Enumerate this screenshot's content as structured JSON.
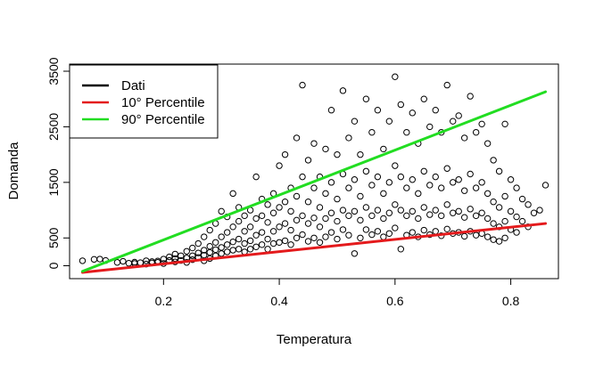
{
  "chart_data": {
    "type": "scatter",
    "title": "",
    "xlabel": "Temperatura",
    "ylabel": "Domanda",
    "xlim": [
      0.05,
      0.87
    ],
    "ylim": [
      -120,
      3500
    ],
    "x_ticks": [
      0.2,
      0.4,
      0.6,
      0.8
    ],
    "x_tick_labels": [
      "0.2",
      "0.4",
      "0.6",
      "0.8"
    ],
    "y_ticks": [
      0,
      500,
      1500,
      2500,
      3500
    ],
    "y_tick_labels": [
      "0",
      "500",
      "1500",
      "2500",
      "3500"
    ],
    "grid": false,
    "legend": {
      "position": "top-left",
      "entries": [
        {
          "label": "Dati",
          "color": "#000000"
        },
        {
          "label": "10° Percentile",
          "color": "#e41a1c"
        },
        {
          "label": "90° Percentile",
          "color": "#22dd22"
        }
      ]
    },
    "series": [
      {
        "name": "Dati",
        "kind": "points",
        "color": "#000000",
        "points": [
          [
            0.06,
            90
          ],
          [
            0.08,
            115
          ],
          [
            0.09,
            120
          ],
          [
            0.1,
            95
          ],
          [
            0.12,
            60
          ],
          [
            0.13,
            80
          ],
          [
            0.14,
            45
          ],
          [
            0.15,
            40
          ],
          [
            0.15,
            65
          ],
          [
            0.16,
            55
          ],
          [
            0.17,
            30
          ],
          [
            0.17,
            90
          ],
          [
            0.18,
            50
          ],
          [
            0.18,
            75
          ],
          [
            0.19,
            85
          ],
          [
            0.19,
            60
          ],
          [
            0.2,
            120
          ],
          [
            0.2,
            40
          ],
          [
            0.21,
            95
          ],
          [
            0.21,
            160
          ],
          [
            0.22,
            70
          ],
          [
            0.22,
            210
          ],
          [
            0.22,
            130
          ],
          [
            0.23,
            180
          ],
          [
            0.23,
            95
          ],
          [
            0.24,
            260
          ],
          [
            0.24,
            140
          ],
          [
            0.24,
            60
          ],
          [
            0.25,
            320
          ],
          [
            0.25,
            180
          ],
          [
            0.25,
            110
          ],
          [
            0.26,
            230
          ],
          [
            0.26,
            400
          ],
          [
            0.26,
            150
          ],
          [
            0.27,
            280
          ],
          [
            0.27,
            520
          ],
          [
            0.27,
            190
          ],
          [
            0.27,
            90
          ],
          [
            0.28,
            350
          ],
          [
            0.28,
            640
          ],
          [
            0.28,
            240
          ],
          [
            0.28,
            130
          ],
          [
            0.29,
            420
          ],
          [
            0.29,
            760
          ],
          [
            0.29,
            290
          ],
          [
            0.29,
            180
          ],
          [
            0.3,
            980
          ],
          [
            0.3,
            520
          ],
          [
            0.3,
            330
          ],
          [
            0.3,
            220
          ],
          [
            0.31,
            600
          ],
          [
            0.31,
            880
          ],
          [
            0.31,
            380
          ],
          [
            0.31,
            250
          ],
          [
            0.32,
            700
          ],
          [
            0.32,
            1300
          ],
          [
            0.32,
            430
          ],
          [
            0.32,
            280
          ],
          [
            0.33,
            800
          ],
          [
            0.33,
            1050
          ],
          [
            0.33,
            480
          ],
          [
            0.33,
            300
          ],
          [
            0.34,
            900
          ],
          [
            0.34,
            620
          ],
          [
            0.34,
            400
          ],
          [
            0.34,
            250
          ],
          [
            0.35,
            1000
          ],
          [
            0.35,
            700
          ],
          [
            0.35,
            450
          ],
          [
            0.35,
            300
          ],
          [
            0.36,
            1600
          ],
          [
            0.36,
            850
          ],
          [
            0.36,
            550
          ],
          [
            0.36,
            340
          ],
          [
            0.37,
            1200
          ],
          [
            0.37,
            900
          ],
          [
            0.37,
            600
          ],
          [
            0.37,
            380
          ],
          [
            0.38,
            1100
          ],
          [
            0.38,
            780
          ],
          [
            0.38,
            480
          ],
          [
            0.38,
            300
          ],
          [
            0.39,
            1300
          ],
          [
            0.39,
            950
          ],
          [
            0.39,
            620
          ],
          [
            0.39,
            400
          ],
          [
            0.4,
            1800
          ],
          [
            0.4,
            1050
          ],
          [
            0.4,
            700
          ],
          [
            0.4,
            420
          ],
          [
            0.41,
            2000
          ],
          [
            0.41,
            1150
          ],
          [
            0.41,
            760
          ],
          [
            0.41,
            450
          ],
          [
            0.42,
            1400
          ],
          [
            0.42,
            980
          ],
          [
            0.42,
            640
          ],
          [
            0.42,
            380
          ],
          [
            0.43,
            2300
          ],
          [
            0.43,
            1250
          ],
          [
            0.43,
            820
          ],
          [
            0.43,
            500
          ],
          [
            0.44,
            3250
          ],
          [
            0.44,
            1600
          ],
          [
            0.44,
            900
          ],
          [
            0.44,
            560
          ],
          [
            0.45,
            1900
          ],
          [
            0.45,
            1150
          ],
          [
            0.45,
            760
          ],
          [
            0.45,
            440
          ],
          [
            0.46,
            2200
          ],
          [
            0.46,
            1400
          ],
          [
            0.46,
            860
          ],
          [
            0.46,
            500
          ],
          [
            0.47,
            1600
          ],
          [
            0.47,
            1050
          ],
          [
            0.47,
            700
          ],
          [
            0.47,
            420
          ],
          [
            0.48,
            2100
          ],
          [
            0.48,
            1300
          ],
          [
            0.48,
            850
          ],
          [
            0.48,
            520
          ],
          [
            0.49,
            2800
          ],
          [
            0.49,
            1500
          ],
          [
            0.49,
            950
          ],
          [
            0.49,
            600
          ],
          [
            0.5,
            2000
          ],
          [
            0.5,
            1200
          ],
          [
            0.5,
            800
          ],
          [
            0.5,
            480
          ],
          [
            0.51,
            3150
          ],
          [
            0.51,
            1650
          ],
          [
            0.51,
            1000
          ],
          [
            0.51,
            650
          ],
          [
            0.52,
            2300
          ],
          [
            0.52,
            1400
          ],
          [
            0.52,
            900
          ],
          [
            0.52,
            550
          ],
          [
            0.53,
            2600
          ],
          [
            0.53,
            1550
          ],
          [
            0.53,
            980
          ],
          [
            0.53,
            220
          ],
          [
            0.54,
            2000
          ],
          [
            0.54,
            1250
          ],
          [
            0.54,
            820
          ],
          [
            0.54,
            500
          ],
          [
            0.55,
            3000
          ],
          [
            0.55,
            1700
          ],
          [
            0.55,
            1050
          ],
          [
            0.55,
            650
          ],
          [
            0.56,
            2400
          ],
          [
            0.56,
            1450
          ],
          [
            0.56,
            900
          ],
          [
            0.56,
            560
          ],
          [
            0.57,
            2800
          ],
          [
            0.57,
            1600
          ],
          [
            0.57,
            1000
          ],
          [
            0.57,
            620
          ],
          [
            0.58,
            2100
          ],
          [
            0.58,
            1300
          ],
          [
            0.58,
            850
          ],
          [
            0.58,
            520
          ],
          [
            0.59,
            2600
          ],
          [
            0.59,
            1500
          ],
          [
            0.59,
            950
          ],
          [
            0.59,
            580
          ],
          [
            0.6,
            3400
          ],
          [
            0.6,
            1800
          ],
          [
            0.6,
            1100
          ],
          [
            0.6,
            680
          ],
          [
            0.61,
            2900
          ],
          [
            0.61,
            1600
          ],
          [
            0.61,
            1000
          ],
          [
            0.61,
            300
          ],
          [
            0.62,
            2400
          ],
          [
            0.62,
            1400
          ],
          [
            0.62,
            900
          ],
          [
            0.62,
            550
          ],
          [
            0.63,
            2750
          ],
          [
            0.63,
            1550
          ],
          [
            0.63,
            980
          ],
          [
            0.63,
            600
          ],
          [
            0.64,
            2200
          ],
          [
            0.64,
            1300
          ],
          [
            0.64,
            850
          ],
          [
            0.64,
            520
          ],
          [
            0.65,
            3000
          ],
          [
            0.65,
            1700
          ],
          [
            0.65,
            1050
          ],
          [
            0.65,
            640
          ],
          [
            0.66,
            2500
          ],
          [
            0.66,
            1450
          ],
          [
            0.66,
            920
          ],
          [
            0.66,
            560
          ],
          [
            0.67,
            2800
          ],
          [
            0.67,
            1600
          ],
          [
            0.67,
            1000
          ],
          [
            0.67,
            620
          ],
          [
            0.68,
            2400
          ],
          [
            0.68,
            1400
          ],
          [
            0.68,
            900
          ],
          [
            0.68,
            540
          ],
          [
            0.69,
            3250
          ],
          [
            0.69,
            1750
          ],
          [
            0.69,
            1100
          ],
          [
            0.69,
            660
          ],
          [
            0.7,
            2600
          ],
          [
            0.7,
            1500
          ],
          [
            0.7,
            950
          ],
          [
            0.7,
            580
          ],
          [
            0.71,
            2700
          ],
          [
            0.71,
            1550
          ],
          [
            0.71,
            980
          ],
          [
            0.71,
            600
          ],
          [
            0.72,
            2300
          ],
          [
            0.72,
            1350
          ],
          [
            0.72,
            870
          ],
          [
            0.72,
            530
          ],
          [
            0.73,
            3050
          ],
          [
            0.73,
            1650
          ],
          [
            0.73,
            1020
          ],
          [
            0.73,
            620
          ],
          [
            0.74,
            2400
          ],
          [
            0.74,
            1400
          ],
          [
            0.74,
            900
          ],
          [
            0.74,
            550
          ],
          [
            0.75,
            2550
          ],
          [
            0.75,
            1500
          ],
          [
            0.75,
            950
          ],
          [
            0.75,
            580
          ],
          [
            0.76,
            2200
          ],
          [
            0.76,
            1300
          ],
          [
            0.76,
            850
          ],
          [
            0.76,
            520
          ],
          [
            0.77,
            1900
          ],
          [
            0.77,
            1150
          ],
          [
            0.77,
            760
          ],
          [
            0.77,
            470
          ],
          [
            0.78,
            1700
          ],
          [
            0.78,
            1050
          ],
          [
            0.78,
            700
          ],
          [
            0.78,
            440
          ],
          [
            0.79,
            2550
          ],
          [
            0.79,
            1250
          ],
          [
            0.79,
            800
          ],
          [
            0.79,
            500
          ],
          [
            0.8,
            1550
          ],
          [
            0.8,
            980
          ],
          [
            0.8,
            650
          ],
          [
            0.81,
            1400
          ],
          [
            0.81,
            880
          ],
          [
            0.81,
            600
          ],
          [
            0.82,
            1200
          ],
          [
            0.82,
            800
          ],
          [
            0.83,
            1100
          ],
          [
            0.83,
            700
          ],
          [
            0.84,
            950
          ],
          [
            0.85,
            1000
          ],
          [
            0.86,
            1450
          ]
        ]
      },
      {
        "name": "10° Percentile",
        "kind": "line",
        "color": "#e41a1c",
        "points": [
          [
            0.06,
            -120
          ],
          [
            0.86,
            760
          ]
        ]
      },
      {
        "name": "90° Percentile",
        "kind": "line",
        "color": "#22dd22",
        "points": [
          [
            0.06,
            -100
          ],
          [
            0.86,
            3130
          ]
        ]
      }
    ]
  }
}
